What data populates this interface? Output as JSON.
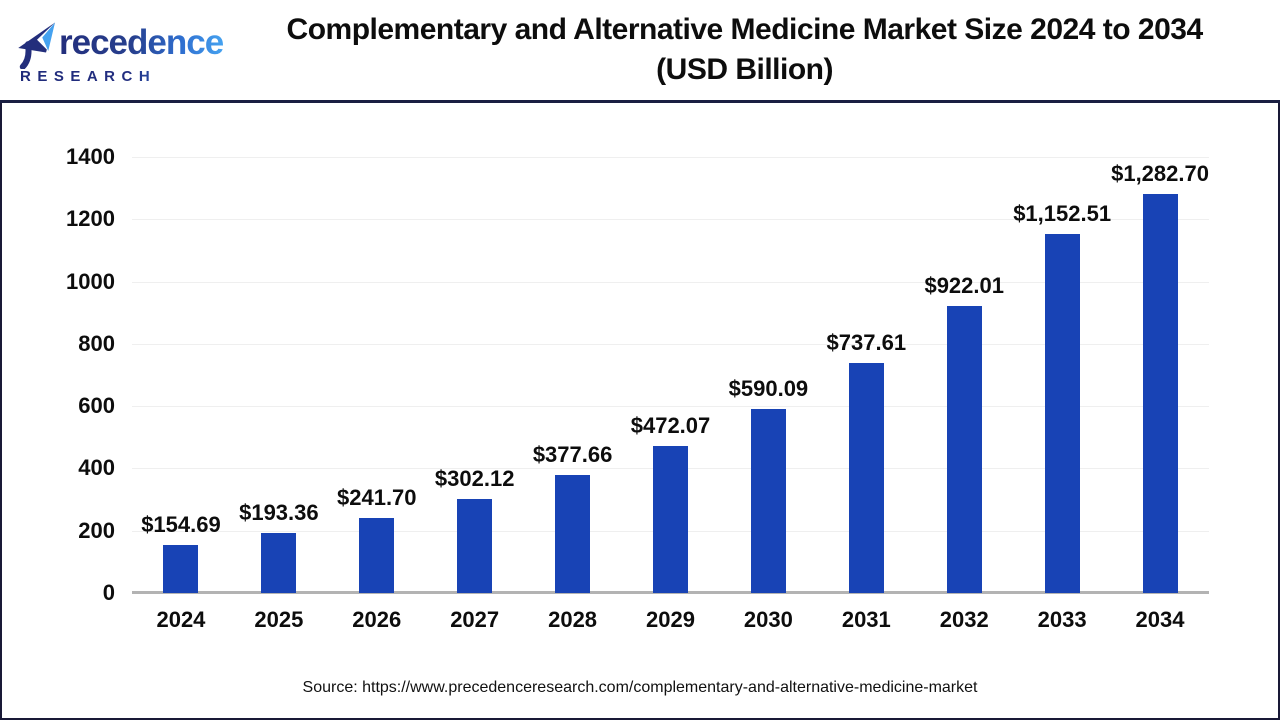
{
  "header": {
    "logo": {
      "brand_text": "Precedence",
      "research_text": "RESEARCH"
    },
    "title_line1": "Complementary and Alternative Medicine Market Size 2024 to 2034",
    "title_line2": "(USD Billion)"
  },
  "footer": {
    "source": "Source: https://www.precedenceresearch.com/complementary-and-alternative-medicine-market"
  },
  "colors": {
    "bar": "#1843b5",
    "logo_navy": "#232e7c",
    "logo_blue": "#45a2f0",
    "gridline": "#efefef",
    "axis_baseline": "#b3b3b3",
    "frame_border": "#1a1f42"
  },
  "chart_data": {
    "type": "bar",
    "title": "Complementary and Alternative Medicine Market Size 2024 to 2034 (USD Billion)",
    "xlabel": "",
    "ylabel": "",
    "categories": [
      "2024",
      "2025",
      "2026",
      "2027",
      "2028",
      "2029",
      "2030",
      "2031",
      "2032",
      "2033",
      "2034"
    ],
    "values": [
      154.69,
      193.36,
      241.7,
      302.12,
      377.66,
      472.07,
      590.09,
      737.61,
      922.01,
      1152.51,
      1282.7
    ],
    "bar_labels": [
      "$154.69",
      "$193.36",
      "$241.70",
      "$302.12",
      "$377.66",
      "$472.07",
      "$590.09",
      "$737.61",
      "$922.01",
      "$1,152.51",
      "$1,282.70"
    ],
    "ylim": [
      0,
      1400
    ],
    "yticks": [
      0,
      200,
      400,
      600,
      800,
      1000,
      1200,
      1400
    ],
    "grid": true,
    "legend": false
  }
}
